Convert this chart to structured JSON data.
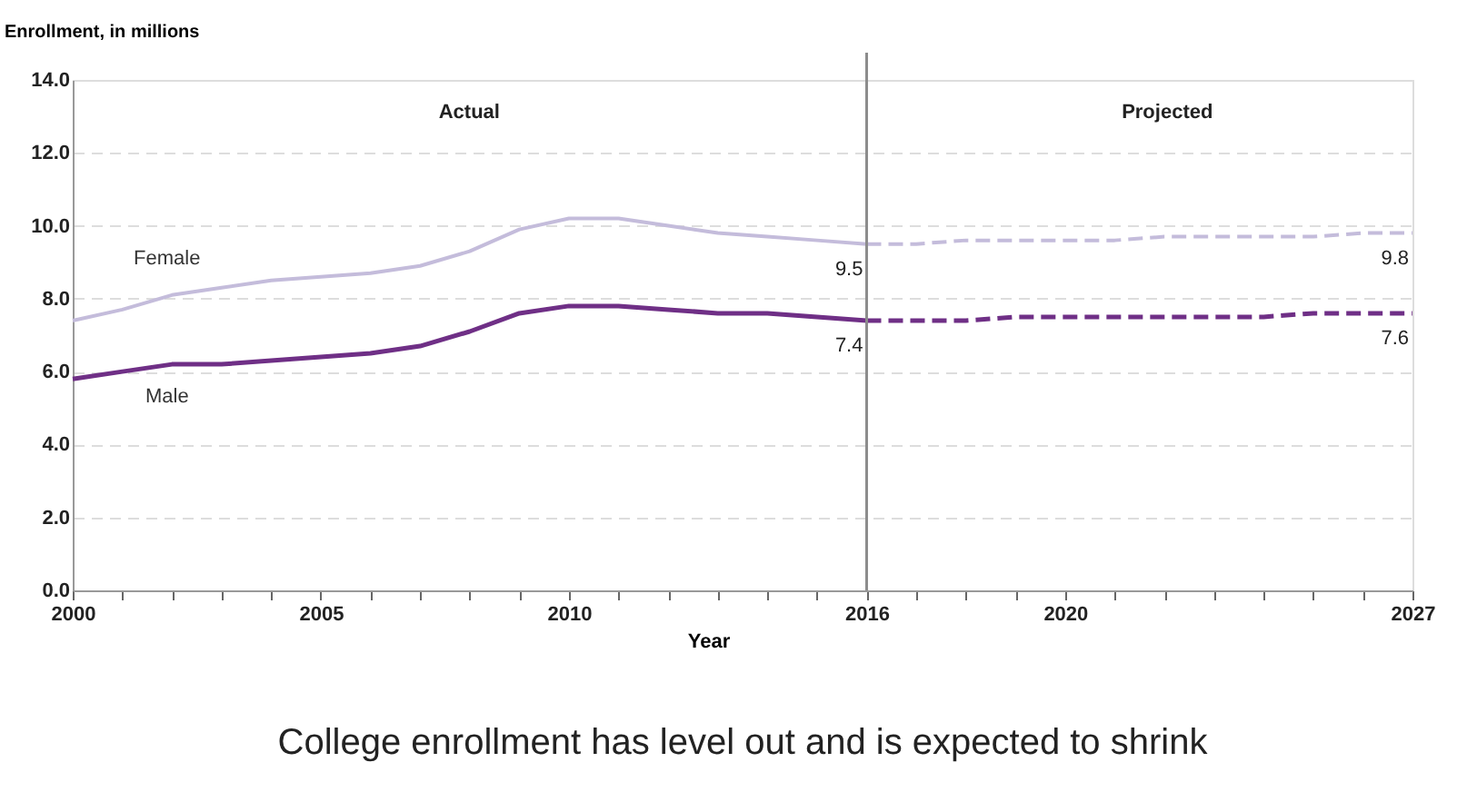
{
  "chart_data": {
    "type": "line",
    "xlabel": "Year",
    "ylabel": "Enrollment, in millions",
    "annotations": [
      "Actual",
      "Projected",
      "College enrollment has level out and is expected to shrink"
    ],
    "xlim": [
      2000,
      2027
    ],
    "xticks": [
      2000,
      {
        "value": 2001,
        "label": null
      },
      {
        "value": 2002,
        "label": null
      },
      {
        "value": 2003,
        "label": null
      },
      {
        "value": 2004,
        "label": null
      },
      2005,
      {
        "value": 2006,
        "label": null
      },
      {
        "value": 2007,
        "label": null
      },
      {
        "value": 2008,
        "label": null
      },
      {
        "value": 2009,
        "label": null
      },
      2010,
      {
        "value": 2011,
        "label": null
      },
      {
        "value": 2012,
        "label": null
      },
      {
        "value": 2013,
        "label": null
      },
      {
        "value": 2014,
        "label": null
      },
      {
        "value": 2015,
        "label": null
      },
      2016,
      {
        "value": 2017,
        "label": null
      },
      {
        "value": 2018,
        "label": null
      },
      {
        "value": 2019,
        "label": null
      },
      2020,
      {
        "value": 2021,
        "label": null
      },
      {
        "value": 2022,
        "label": null
      },
      {
        "value": 2023,
        "label": null
      },
      {
        "value": 2024,
        "label": null
      },
      {
        "value": 2025,
        "label": null
      },
      {
        "value": 2026,
        "label": null
      },
      2027
    ],
    "ylim": [
      0,
      14
    ],
    "yticks": [
      {
        "value": 0,
        "label": "0.0"
      },
      {
        "value": 2,
        "label": "2.0"
      },
      {
        "value": 4,
        "label": "4.0"
      },
      {
        "value": 6,
        "label": "6.0"
      },
      {
        "value": 8,
        "label": "8.0"
      },
      {
        "value": 10,
        "label": "10.0"
      },
      {
        "value": 12,
        "label": "12.0"
      },
      {
        "value": 14,
        "label": "14.0"
      }
    ],
    "grid": "y",
    "legend": false,
    "marker": "none",
    "ref_lines": [
      {
        "axis": "x",
        "value": 2016,
        "color": "#8c8c8c"
      }
    ],
    "series": [
      {
        "name": "Female",
        "color": "#c4bcdb",
        "line_style": "solid",
        "x": [
          2000,
          2001,
          2002,
          2003,
          2004,
          2005,
          2006,
          2007,
          2008,
          2009,
          2010,
          2011,
          2012,
          2013,
          2014,
          2015,
          2016
        ],
        "values": [
          7.4,
          7.7,
          8.1,
          8.3,
          8.5,
          8.6,
          8.7,
          8.9,
          9.3,
          9.9,
          10.2,
          10.2,
          10.0,
          9.8,
          9.7,
          9.6,
          9.5
        ],
        "value_labels": [
          null,
          null,
          null,
          null,
          null,
          null,
          null,
          null,
          null,
          null,
          null,
          null,
          null,
          null,
          null,
          null,
          "9.5"
        ]
      },
      {
        "color": "#c4bcdb",
        "line_style": "dashed",
        "x": [
          2016,
          2017,
          2018,
          2019,
          2020,
          2021,
          2022,
          2023,
          2024,
          2025,
          2026,
          2027
        ],
        "values": [
          9.5,
          9.5,
          9.6,
          9.6,
          9.6,
          9.6,
          9.7,
          9.7,
          9.7,
          9.7,
          9.8,
          9.8
        ],
        "value_labels": [
          null,
          null,
          null,
          null,
          null,
          null,
          null,
          null,
          null,
          null,
          null,
          "9.8"
        ]
      },
      {
        "name": "Male",
        "color": "#6f2f86",
        "line_style": "solid",
        "x": [
          2000,
          2001,
          2002,
          2003,
          2004,
          2005,
          2006,
          2007,
          2008,
          2009,
          2010,
          2011,
          2012,
          2013,
          2014,
          2015,
          2016
        ],
        "values": [
          5.8,
          6.0,
          6.2,
          6.2,
          6.3,
          6.4,
          6.5,
          6.7,
          7.1,
          7.6,
          7.8,
          7.8,
          7.7,
          7.6,
          7.6,
          7.5,
          7.4
        ],
        "value_labels": [
          null,
          null,
          null,
          null,
          null,
          null,
          null,
          null,
          null,
          null,
          null,
          null,
          null,
          null,
          null,
          null,
          "7.4"
        ]
      },
      {
        "color": "#6f2f86",
        "line_style": "dashed",
        "x": [
          2016,
          2017,
          2018,
          2019,
          2020,
          2021,
          2022,
          2023,
          2024,
          2025,
          2026,
          2027
        ],
        "values": [
          7.4,
          7.4,
          7.4,
          7.5,
          7.5,
          7.5,
          7.5,
          7.5,
          7.5,
          7.6,
          7.6,
          7.6
        ],
        "value_labels": [
          null,
          null,
          null,
          null,
          null,
          null,
          null,
          null,
          null,
          null,
          null,
          "7.6"
        ]
      }
    ]
  }
}
